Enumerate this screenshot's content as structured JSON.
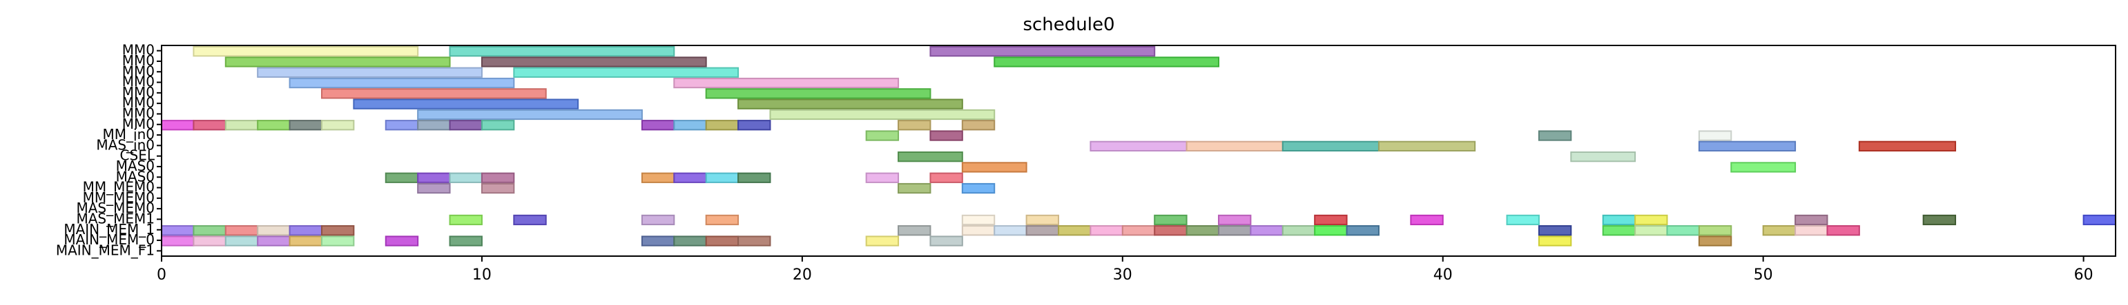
{
  "chart_data": {
    "type": "gantt",
    "title": "schedule0",
    "xlabel": "",
    "ylabel": "",
    "xlim": [
      0,
      61
    ],
    "x_ticks": [
      0,
      10,
      20,
      30,
      40,
      50,
      60
    ],
    "x_tick_labels": [
      "0",
      "10",
      "20",
      "30",
      "40",
      "50",
      "60"
    ],
    "grid": false,
    "legend": "none",
    "rows": [
      "MM0",
      "MM0",
      "MM0",
      "MM0",
      "MM0",
      "MM0",
      "MM0",
      "MM0",
      "MM_in0",
      "MAS_in0",
      "CSEL",
      "MAS0",
      "MAS0",
      "MM_MEM0",
      "MM_MEM0",
      "MAS_MEM0",
      "MAS_MEM1",
      "MAIN_MEM_1",
      "MAIN_MEM_0",
      "MAIN_MEM_F1"
    ],
    "tasks": [
      {
        "row": 0,
        "start": 1,
        "end": 8,
        "color": "#f7f7b0"
      },
      {
        "row": 0,
        "start": 9,
        "end": 16,
        "color": "#5fd8c2"
      },
      {
        "row": 0,
        "start": 24,
        "end": 31,
        "color": "#9c62ba"
      },
      {
        "row": 1,
        "start": 2,
        "end": 9,
        "color": "#7fcf4f"
      },
      {
        "row": 1,
        "start": 10,
        "end": 17,
        "color": "#7a5560"
      },
      {
        "row": 1,
        "start": 26,
        "end": 33,
        "color": "#44cf3f"
      },
      {
        "row": 2,
        "start": 3,
        "end": 10,
        "color": "#aac6f3"
      },
      {
        "row": 2,
        "start": 11,
        "end": 18,
        "color": "#5fe8d2"
      },
      {
        "row": 3,
        "start": 4,
        "end": 11,
        "color": "#87b5f5"
      },
      {
        "row": 3,
        "start": 16,
        "end": 23,
        "color": "#f0a8d8"
      },
      {
        "row": 4,
        "start": 5,
        "end": 12,
        "color": "#ef7d77"
      },
      {
        "row": 4,
        "start": 17,
        "end": 24,
        "color": "#58cd4a"
      },
      {
        "row": 5,
        "start": 6,
        "end": 13,
        "color": "#4f78de"
      },
      {
        "row": 5,
        "start": 18,
        "end": 25,
        "color": "#7fa848"
      },
      {
        "row": 6,
        "start": 8,
        "end": 15,
        "color": "#84b4ef"
      },
      {
        "row": 6,
        "start": 19,
        "end": 26,
        "color": "#cbeaa8"
      },
      {
        "row": 7,
        "start": 0,
        "end": 1,
        "color": "#e84ae0"
      },
      {
        "row": 7,
        "start": 1,
        "end": 2,
        "color": "#e0527a"
      },
      {
        "row": 7,
        "start": 2,
        "end": 3,
        "color": "#c9e6a8"
      },
      {
        "row": 7,
        "start": 3,
        "end": 4,
        "color": "#88d85a"
      },
      {
        "row": 7,
        "start": 4,
        "end": 5,
        "color": "#6f7f7a"
      },
      {
        "row": 7,
        "start": 5,
        "end": 6,
        "color": "#d8ecb2"
      },
      {
        "row": 7,
        "start": 7,
        "end": 8,
        "color": "#7e8ff0"
      },
      {
        "row": 7,
        "start": 8,
        "end": 9,
        "color": "#8aa0b8"
      },
      {
        "row": 7,
        "start": 9,
        "end": 10,
        "color": "#7d4fa5"
      },
      {
        "row": 7,
        "start": 10,
        "end": 11,
        "color": "#5fcfb0"
      },
      {
        "row": 7,
        "start": 15,
        "end": 16,
        "color": "#9a3fc2"
      },
      {
        "row": 7,
        "start": 16,
        "end": 17,
        "color": "#6fb5e8"
      },
      {
        "row": 7,
        "start": 17,
        "end": 18,
        "color": "#b5b052"
      },
      {
        "row": 7,
        "start": 18,
        "end": 19,
        "color": "#4a4fbf"
      },
      {
        "row": 7,
        "start": 23,
        "end": 24,
        "color": "#c9b36a"
      },
      {
        "row": 7,
        "start": 25,
        "end": 26,
        "color": "#c9a86a"
      },
      {
        "row": 8,
        "start": 22,
        "end": 23,
        "color": "#92d872"
      },
      {
        "row": 8,
        "start": 24,
        "end": 25,
        "color": "#a04f7a"
      },
      {
        "row": 8,
        "start": 43,
        "end": 44,
        "color": "#6f9a8f"
      },
      {
        "row": 8,
        "start": 48,
        "end": 49,
        "color": "#eef5ee"
      },
      {
        "row": 9,
        "start": 29,
        "end": 32,
        "color": "#dfa5ea"
      },
      {
        "row": 9,
        "start": 32,
        "end": 35,
        "color": "#f7c6a8"
      },
      {
        "row": 9,
        "start": 35,
        "end": 38,
        "color": "#4fb8a8"
      },
      {
        "row": 9,
        "start": 38,
        "end": 41,
        "color": "#b8c070"
      },
      {
        "row": 9,
        "start": 48,
        "end": 51,
        "color": "#6a92e0"
      },
      {
        "row": 9,
        "start": 53,
        "end": 56,
        "color": "#cc3a2a"
      },
      {
        "row": 10,
        "start": 23,
        "end": 25,
        "color": "#5fa65a"
      },
      {
        "row": 10,
        "start": 44,
        "end": 46,
        "color": "#c2e2c8"
      },
      {
        "row": 11,
        "start": 25,
        "end": 27,
        "color": "#ea8f4a"
      },
      {
        "row": 11,
        "start": 49,
        "end": 51,
        "color": "#6ff26a"
      },
      {
        "row": 12,
        "start": 7,
        "end": 8,
        "color": "#5fa060"
      },
      {
        "row": 12,
        "start": 8,
        "end": 9,
        "color": "#8a4fd8"
      },
      {
        "row": 12,
        "start": 9,
        "end": 10,
        "color": "#9fd8d8"
      },
      {
        "row": 12,
        "start": 10,
        "end": 11,
        "color": "#b06a98"
      },
      {
        "row": 12,
        "start": 15,
        "end": 16,
        "color": "#e89a50"
      },
      {
        "row": 12,
        "start": 16,
        "end": 17,
        "color": "#7b52e0"
      },
      {
        "row": 12,
        "start": 17,
        "end": 18,
        "color": "#5fd8ea"
      },
      {
        "row": 12,
        "start": 18,
        "end": 19,
        "color": "#4f8a5a"
      },
      {
        "row": 12,
        "start": 22,
        "end": 23,
        "color": "#e8a8e8"
      },
      {
        "row": 12,
        "start": 24,
        "end": 25,
        "color": "#ee6a7a"
      },
      {
        "row": 13,
        "start": 8,
        "end": 9,
        "color": "#a88ab8"
      },
      {
        "row": 13,
        "start": 10,
        "end": 11,
        "color": "#c08a9a"
      },
      {
        "row": 13,
        "start": 23,
        "end": 24,
        "color": "#9cb86a"
      },
      {
        "row": 13,
        "start": 25,
        "end": 26,
        "color": "#5aa8f5"
      },
      {
        "row": 16,
        "start": 9,
        "end": 10,
        "color": "#8fef5a"
      },
      {
        "row": 16,
        "start": 11,
        "end": 12,
        "color": "#5f4fd0"
      },
      {
        "row": 16,
        "start": 15,
        "end": 16,
        "color": "#c4a2d8"
      },
      {
        "row": 16,
        "start": 17,
        "end": 18,
        "color": "#f5a070"
      },
      {
        "row": 16,
        "start": 25,
        "end": 26,
        "color": "#fdf3e2"
      },
      {
        "row": 16,
        "start": 27,
        "end": 28,
        "color": "#f3d8a0"
      },
      {
        "row": 16,
        "start": 31,
        "end": 32,
        "color": "#5fc05f"
      },
      {
        "row": 16,
        "start": 33,
        "end": 34,
        "color": "#d870d8"
      },
      {
        "row": 16,
        "start": 36,
        "end": 37,
        "color": "#d83a42"
      },
      {
        "row": 16,
        "start": 39,
        "end": 40,
        "color": "#e03ad8"
      },
      {
        "row": 16,
        "start": 42,
        "end": 43,
        "color": "#5ff0e2"
      },
      {
        "row": 16,
        "start": 45,
        "end": 46,
        "color": "#4ae0d8"
      },
      {
        "row": 16,
        "start": 46,
        "end": 47,
        "color": "#eef050"
      },
      {
        "row": 16,
        "start": 51,
        "end": 52,
        "color": "#a87898"
      },
      {
        "row": 16,
        "start": 55,
        "end": 56,
        "color": "#4a6a38"
      },
      {
        "row": 16,
        "start": 60,
        "end": 61,
        "color": "#4a52e8"
      },
      {
        "row": 17,
        "start": 0,
        "end": 1,
        "color": "#9a7af0"
      },
      {
        "row": 17,
        "start": 1,
        "end": 2,
        "color": "#7fcf7f"
      },
      {
        "row": 17,
        "start": 2,
        "end": 3,
        "color": "#ee8080"
      },
      {
        "row": 17,
        "start": 3,
        "end": 4,
        "color": "#e8d8c8"
      },
      {
        "row": 17,
        "start": 4,
        "end": 5,
        "color": "#8a70e8"
      },
      {
        "row": 17,
        "start": 5,
        "end": 6,
        "color": "#a8604f"
      },
      {
        "row": 17,
        "start": 23,
        "end": 24,
        "color": "#a8b0b0"
      },
      {
        "row": 17,
        "start": 25,
        "end": 26,
        "color": "#f8ead8"
      },
      {
        "row": 17,
        "start": 26,
        "end": 27,
        "color": "#c8dcf0"
      },
      {
        "row": 17,
        "start": 27,
        "end": 28,
        "color": "#a89a9f"
      },
      {
        "row": 17,
        "start": 28,
        "end": 29,
        "color": "#c8c058"
      },
      {
        "row": 17,
        "start": 29,
        "end": 30,
        "color": "#f8a8d8"
      },
      {
        "row": 17,
        "start": 30,
        "end": 31,
        "color": "#f09a9a"
      },
      {
        "row": 17,
        "start": 31,
        "end": 32,
        "color": "#c85a5a"
      },
      {
        "row": 17,
        "start": 32,
        "end": 33,
        "color": "#7a9f5f"
      },
      {
        "row": 17,
        "start": 33,
        "end": 34,
        "color": "#9898a0"
      },
      {
        "row": 17,
        "start": 34,
        "end": 35,
        "color": "#b880e8"
      },
      {
        "row": 17,
        "start": 35,
        "end": 36,
        "color": "#a8d8a8"
      },
      {
        "row": 17,
        "start": 36,
        "end": 37,
        "color": "#4af04a"
      },
      {
        "row": 17,
        "start": 37,
        "end": 38,
        "color": "#4a80a8"
      },
      {
        "row": 17,
        "start": 43,
        "end": 44,
        "color": "#3a4aa8"
      },
      {
        "row": 17,
        "start": 45,
        "end": 46,
        "color": "#58e858"
      },
      {
        "row": 17,
        "start": 46,
        "end": 47,
        "color": "#c8f0a8"
      },
      {
        "row": 17,
        "start": 47,
        "end": 48,
        "color": "#78e8a8"
      },
      {
        "row": 17,
        "start": 48,
        "end": 49,
        "color": "#a8d870"
      },
      {
        "row": 17,
        "start": 50,
        "end": 51,
        "color": "#c8c060"
      },
      {
        "row": 17,
        "start": 51,
        "end": 52,
        "color": "#f8d0d0"
      },
      {
        "row": 17,
        "start": 52,
        "end": 53,
        "color": "#e84a88"
      },
      {
        "row": 18,
        "start": 0,
        "end": 1,
        "color": "#e870e8"
      },
      {
        "row": 18,
        "start": 1,
        "end": 2,
        "color": "#f0b8d8"
      },
      {
        "row": 18,
        "start": 2,
        "end": 3,
        "color": "#a8d8d8"
      },
      {
        "row": 18,
        "start": 3,
        "end": 4,
        "color": "#c080e0"
      },
      {
        "row": 18,
        "start": 4,
        "end": 5,
        "color": "#e0b860"
      },
      {
        "row": 18,
        "start": 5,
        "end": 6,
        "color": "#a8f0a8"
      },
      {
        "row": 18,
        "start": 7,
        "end": 8,
        "color": "#c040d8"
      },
      {
        "row": 18,
        "start": 9,
        "end": 10,
        "color": "#5a9a6a"
      },
      {
        "row": 18,
        "start": 15,
        "end": 16,
        "color": "#5a70a8"
      },
      {
        "row": 18,
        "start": 16,
        "end": 17,
        "color": "#5a8a70"
      },
      {
        "row": 18,
        "start": 17,
        "end": 18,
        "color": "#a86050"
      },
      {
        "row": 18,
        "start": 18,
        "end": 19,
        "color": "#a87060"
      },
      {
        "row": 18,
        "start": 22,
        "end": 23,
        "color": "#f8f080"
      },
      {
        "row": 18,
        "start": 24,
        "end": 25,
        "color": "#b8c8c8"
      },
      {
        "row": 18,
        "start": 43,
        "end": 44,
        "color": "#f0f040"
      },
      {
        "row": 18,
        "start": 48,
        "end": 49,
        "color": "#b88a40"
      }
    ]
  }
}
